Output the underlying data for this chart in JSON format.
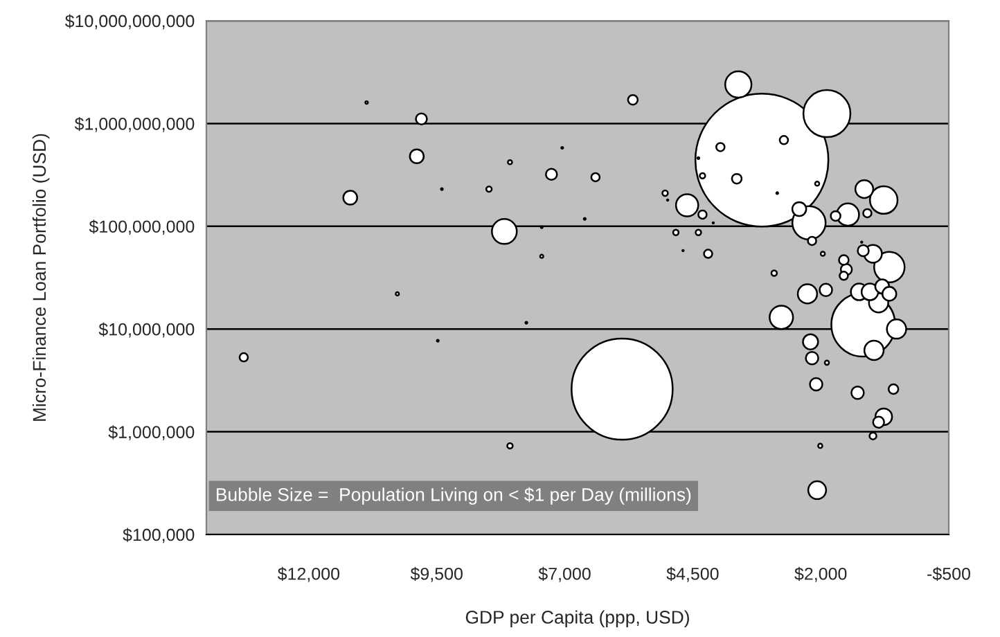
{
  "chart_data": {
    "type": "bubble",
    "xlabel": "GDP per Capita (ppp, USD)",
    "ylabel": "Micro-Finance Loan Portfolio (USD)",
    "annotations": [
      "Bubble Size =  Population Living on < $1 per Day (millions)"
    ],
    "log": "y",
    "grid": "y",
    "marker": "circle",
    "xlim": [
      14000,
      -500
    ],
    "xticks": [
      {
        "value": 12000,
        "label": "$12,000"
      },
      {
        "value": 9500,
        "label": "$9,500"
      },
      {
        "value": 7000,
        "label": "$7,000"
      },
      {
        "value": 4500,
        "label": "$4,500"
      },
      {
        "value": 2000,
        "label": "$2,000"
      },
      {
        "value": -500,
        "label": "-$500"
      }
    ],
    "ylim": [
      100000,
      10000000000
    ],
    "yticks": [
      {
        "value": 100000,
        "label": "$100,000"
      },
      {
        "value": 1000000,
        "label": "$1,000,000"
      },
      {
        "value": 10000000,
        "label": "$10,000,000"
      },
      {
        "value": 100000000,
        "label": "$100,000,000"
      },
      {
        "value": 1000000000,
        "label": "$1,000,000,000"
      },
      {
        "value": 10000000000,
        "label": "$10,000,000,000"
      }
    ],
    "series": [
      {
        "color": "#ffffff",
        "x": [
          10870,
          9800,
          9890,
          8070,
          7050,
          7260,
          6400,
          9400,
          8480,
          11190,
          8180,
          7450,
          6610,
          7450,
          10270,
          7750,
          9480,
          13270,
          8070,
          5880,
          5670,
          3610,
          1880,
          3150,
          3960,
          2720,
          3640,
          4310,
          4390,
          2070,
          2850,
          5040,
          4990,
          4610,
          4310,
          4100,
          4830,
          4390,
          4690,
          4200,
          2230,
          2420,
          2170,
          1960,
          1150,
          770,
          1470,
          1710,
          1090,
          2910,
          1550,
          1500,
          1550,
          1170,
          980,
          660,
          1200,
          2260,
          1900,
          1250,
          1040,
          800,
          660,
          870,
          1170,
          520,
          960,
          2770,
          2200,
          2170,
          1880,
          2090,
          1280,
          580,
          770,
          870,
          980,
          2010,
          2070
        ],
        "values": [
          1600000000,
          1110000000,
          480000000,
          420000000,
          580000000,
          320000000,
          300000000,
          230000000,
          230000000,
          190000000,
          89000000,
          98000000,
          118000000,
          51000000,
          22000000,
          11500000,
          7700000,
          5300000,
          730000,
          2600000,
          1700000000,
          2400000000,
          1250000000,
          440000000,
          590000000,
          690000000,
          290000000,
          310000000,
          460000000,
          260000000,
          210000000,
          210000000,
          180000000,
          160000000,
          130000000,
          108000000,
          87000000,
          87000000,
          58000000,
          54000000,
          108000000,
          147000000,
          72000000,
          54000000,
          230000000,
          180000000,
          130000000,
          126000000,
          134000000,
          35000000,
          47000000,
          38000000,
          33000000,
          58000000,
          54000000,
          40000000,
          70000000,
          22000000,
          24000000,
          23000000,
          23000000,
          26000000,
          22000000,
          18000000,
          11000000,
          10000000,
          6200000,
          13000000,
          7500000,
          5200000,
          4700000,
          2900000,
          2400000,
          2600000,
          1400000,
          1240000,
          910000,
          730000,
          270000
        ],
        "sizes": [
          0.0004,
          0.0069,
          0.0109,
          0.001,
          0.0002,
          0.0069,
          0.0039,
          0.0002,
          0.0017,
          0.0109,
          0.035,
          0.0002,
          0.0002,
          0.0006,
          0.0006,
          0.0002,
          0.0002,
          0.0039,
          0.0017,
          0.578,
          0.0053,
          0.039,
          0.125,
          1,
          0.0039,
          0.0039,
          0.0053,
          0.0017,
          0.0002,
          0.001,
          0.0002,
          0.0017,
          0.0001,
          0.028,
          0.0039,
          0.0001,
          0.0017,
          0.0017,
          0.0001,
          0.0039,
          0.0625,
          0.0109,
          0.0039,
          0.001,
          0.018,
          0.043,
          0.028,
          0.0053,
          0.0039,
          0.0017,
          0.0053,
          0.0069,
          0.0039,
          0.0069,
          0.018,
          0.0525,
          0.0001,
          0.021,
          0.0088,
          0.0156,
          0.0156,
          0.0109,
          0.0109,
          0.021,
          0.23,
          0.021,
          0.021,
          0.031,
          0.013,
          0.0088,
          0.001,
          0.0088,
          0.0088,
          0.0053,
          0.0156,
          0.0069,
          0.0027,
          0.001,
          0.018
        ]
      }
    ]
  }
}
